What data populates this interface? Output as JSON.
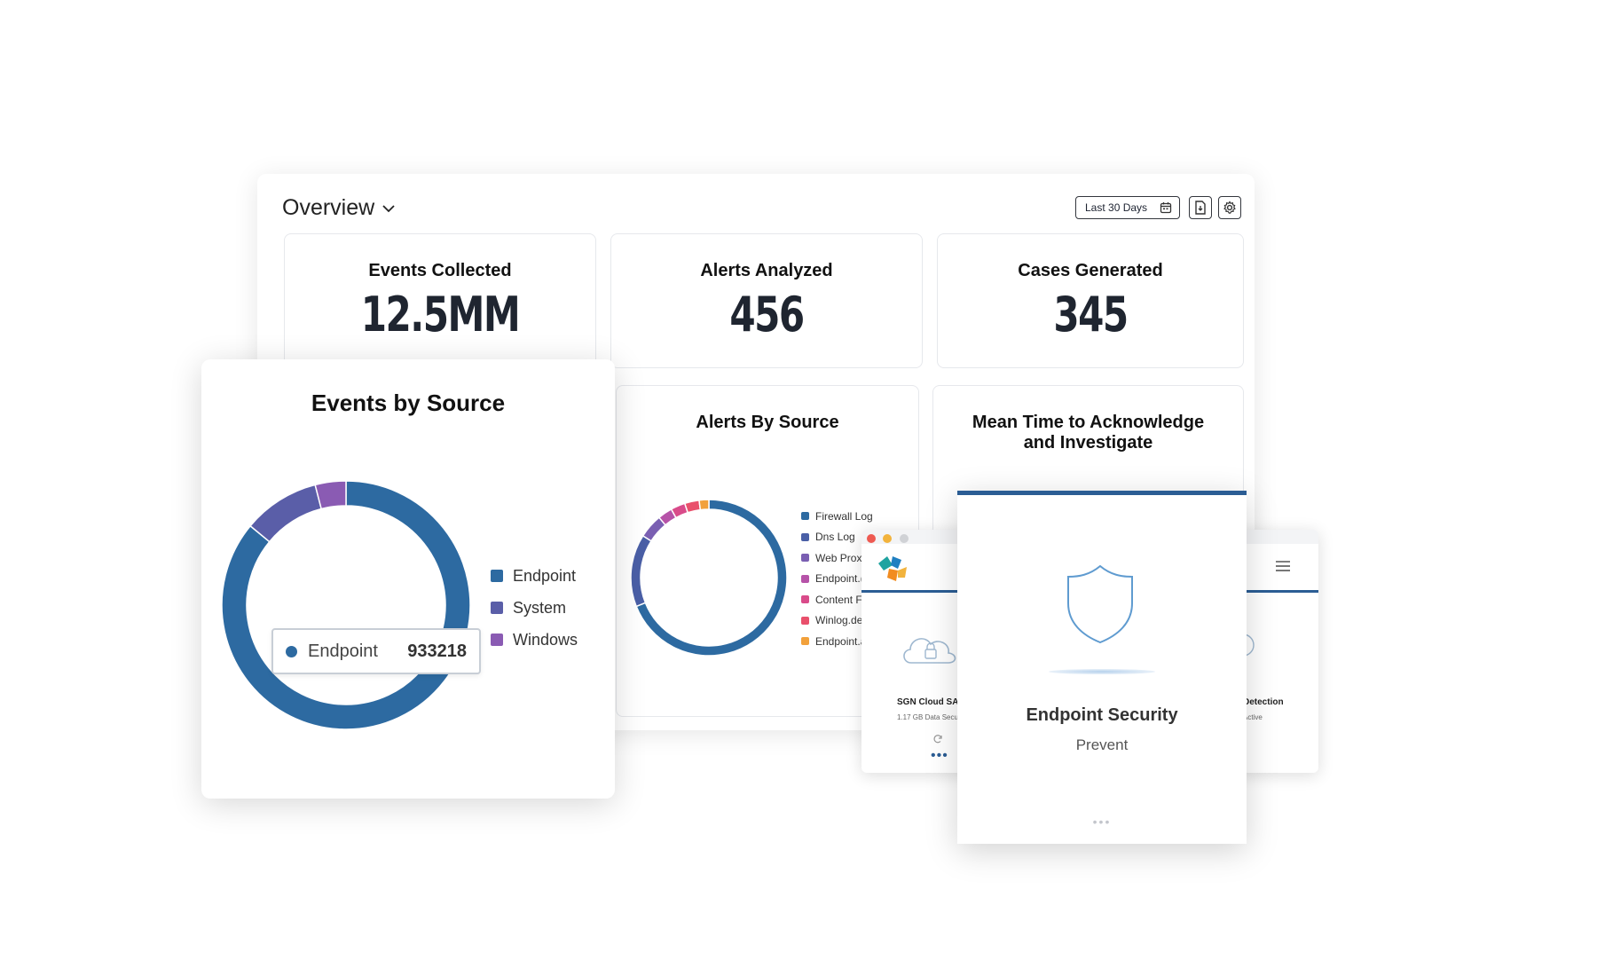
{
  "header": {
    "title": "Overview",
    "date_range": "Last 30 Days"
  },
  "kpis": [
    {
      "label": "Events Collected",
      "value": "12.5MM"
    },
    {
      "label": "Alerts Analyzed",
      "value": "456"
    },
    {
      "label": "Cases Generated",
      "value": "345"
    }
  ],
  "alerts_card": {
    "title": "Alerts By Source",
    "legend": [
      {
        "label": "Firewall Log",
        "color": "#2d6aa1"
      },
      {
        "label": "Dns Log",
        "color": "#4a5fa6"
      },
      {
        "label": "Web Prox",
        "color": "#7a5fb2"
      },
      {
        "label": "Endpoint.(",
        "color": "#b653a8"
      },
      {
        "label": "Content F",
        "color": "#d94b8a"
      },
      {
        "label": "Winlog.de",
        "color": "#e9506c"
      },
      {
        "label": "Endpoint.a",
        "color": "#f2a13b"
      }
    ]
  },
  "mtta_card": {
    "title_line1": "Mean Time to Acknowledge",
    "title_line2": "and Investigate"
  },
  "events_card": {
    "title": "Events by Source",
    "legend": [
      {
        "label": "Endpoint",
        "color": "#2d6aa1"
      },
      {
        "label": "System",
        "color": "#5a5ea8"
      },
      {
        "label": "Windows",
        "color": "#8a5bb3"
      }
    ],
    "tooltip": {
      "label": "Endpoint",
      "value": "933218"
    }
  },
  "left_window": {
    "item_title": "SGN Cloud SA",
    "item_sub": "1.17 GB Data Secu"
  },
  "right_window": {
    "item_title": "Detection",
    "item_sub": "Active"
  },
  "endpoint_card": {
    "title": "Endpoint Security",
    "status": "Prevent"
  },
  "colors": {
    "primary": "#2d6aa1",
    "accent_bar": "#2b5d94"
  },
  "chart_data": [
    {
      "type": "pie",
      "title": "Events by Source",
      "categories": [
        "Endpoint",
        "System",
        "Windows"
      ],
      "values": [
        86,
        10,
        4
      ]
    },
    {
      "type": "pie",
      "title": "Alerts By Source",
      "categories": [
        "Firewall Log",
        "Dns Log",
        "Web Prox",
        "Endpoint.(",
        "Content F",
        "Winlog.de",
        "Endpoint.a"
      ],
      "values": [
        69,
        15,
        5,
        3,
        3,
        3,
        2
      ]
    }
  ]
}
